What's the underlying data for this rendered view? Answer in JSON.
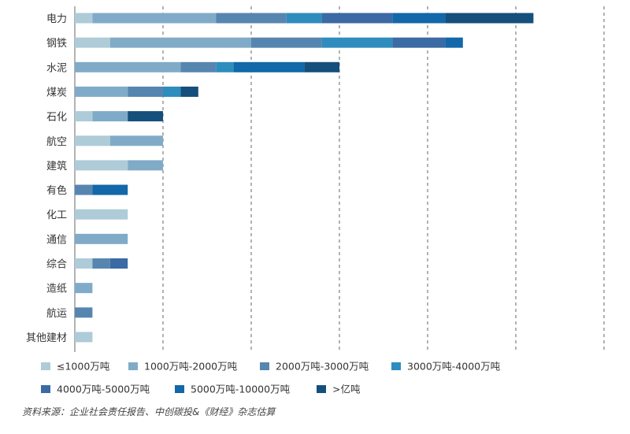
{
  "chart_data": {
    "type": "bar",
    "orientation": "horizontal",
    "stacked": true,
    "categories": [
      "电力",
      "钢铁",
      "水泥",
      "煤炭",
      "石化",
      "航空",
      "建筑",
      "有色",
      "化工",
      "通信",
      "综合",
      "造纸",
      "航运",
      "其他建材"
    ],
    "xlim": [
      0,
      30
    ],
    "grid": "vertical-dashed",
    "series": [
      {
        "name": "≤1000万吨",
        "color": "#aecbd8",
        "values": [
          1,
          2,
          0,
          0,
          1,
          2,
          3,
          0,
          3,
          0,
          1,
          0,
          0,
          1
        ]
      },
      {
        "name": "1000万吨-2000万吨",
        "color": "#80abc8",
        "values": [
          7,
          8,
          6,
          3,
          2,
          3,
          2,
          0,
          0,
          3,
          0,
          1,
          0,
          0
        ]
      },
      {
        "name": "2000万吨-3000万吨",
        "color": "#5686b0",
        "values": [
          4,
          4,
          2,
          2,
          0,
          0,
          0,
          1,
          0,
          0,
          1,
          0,
          1,
          0
        ]
      },
      {
        "name": "3000万吨-4000万吨",
        "color": "#2e8dbd",
        "values": [
          2,
          4,
          1,
          1,
          0,
          0,
          0,
          0,
          0,
          0,
          0,
          0,
          0,
          0
        ]
      },
      {
        "name": "4000万吨-5000万吨",
        "color": "#3b6aa4",
        "values": [
          4,
          3,
          0,
          0,
          0,
          0,
          0,
          0,
          0,
          0,
          1,
          0,
          0,
          0
        ]
      },
      {
        "name": "5000万吨-10000万吨",
        "color": "#1268a8",
        "values": [
          3,
          1,
          4,
          0,
          0,
          0,
          0,
          2,
          0,
          0,
          0,
          0,
          0,
          0
        ]
      },
      {
        "name": ">亿吨",
        "color": "#154f7c",
        "values": [
          5,
          0,
          2,
          1,
          2,
          0,
          0,
          0,
          0,
          0,
          0,
          0,
          0,
          0
        ]
      }
    ],
    "legend_position": "bottom",
    "source": "资料来源：企业社会责任报告、中创碳投&《财经》杂志估算"
  }
}
